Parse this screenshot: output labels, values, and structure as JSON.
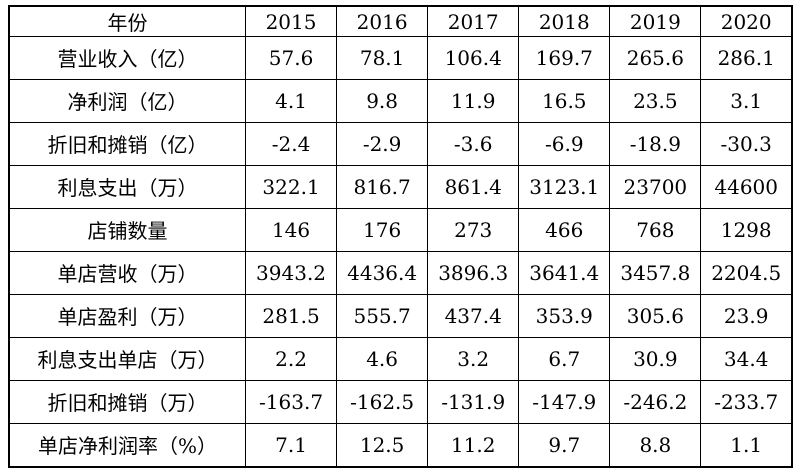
{
  "colors": {
    "background": "#ffffff",
    "border": "#000000",
    "text": "#000000"
  },
  "chart_data": {
    "type": "table",
    "title": "",
    "columns": [
      "年份",
      "2015",
      "2016",
      "2017",
      "2018",
      "2019",
      "2020"
    ],
    "rows": [
      [
        "营业收入（亿）",
        "57.6",
        "78.1",
        "106.4",
        "169.7",
        "265.6",
        "286.1"
      ],
      [
        "净利润（亿）",
        "4.1",
        "9.8",
        "11.9",
        "16.5",
        "23.5",
        "3.1"
      ],
      [
        "折旧和摊销（亿）",
        "-2.4",
        "-2.9",
        "-3.6",
        "-6.9",
        "-18.9",
        "-30.3"
      ],
      [
        "利息支出（万）",
        "322.1",
        "816.7",
        "861.4",
        "3123.1",
        "23700",
        "44600"
      ],
      [
        "店铺数量",
        "146",
        "176",
        "273",
        "466",
        "768",
        "1298"
      ],
      [
        "单店营收（万）",
        "3943.2",
        "4436.4",
        "3896.3",
        "3641.4",
        "3457.8",
        "2204.5"
      ],
      [
        "单店盈利（万）",
        "281.5",
        "555.7",
        "437.4",
        "353.9",
        "305.6",
        "23.9"
      ],
      [
        "利息支出单店（万）",
        "2.2",
        "4.6",
        "3.2",
        "6.7",
        "30.9",
        "34.4"
      ],
      [
        "折旧和摊销（万）",
        "-163.7",
        "-162.5",
        "-131.9",
        "-147.9",
        "-246.2",
        "-233.7"
      ],
      [
        "单店净利润率（%）",
        "7.1",
        "12.5",
        "11.2",
        "9.7",
        "8.8",
        "1.1"
      ]
    ]
  }
}
